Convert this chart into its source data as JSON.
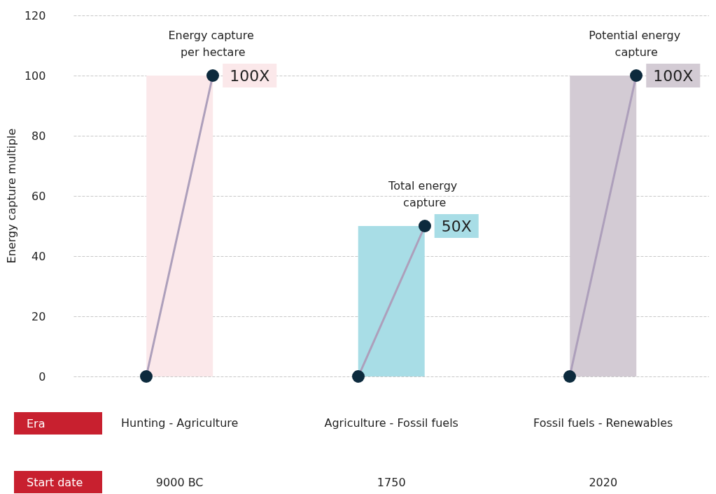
{
  "chart_data": {
    "type": "bar",
    "ylabel": "Energy capture multiple",
    "categories": [
      "Hunting - Agriculture",
      "Agriculture - Fossil fuels",
      "Fossil fuels - Renewables"
    ],
    "series": [
      {
        "type": "bar",
        "colors": [
          "#fbe8ea",
          "#a8dde6",
          "#d3cbd4"
        ],
        "values": [
          100,
          50,
          100
        ]
      }
    ],
    "annotations": [
      "100X",
      "50X",
      "100X",
      "Era",
      "Start date",
      "9000 BC",
      "1750",
      "2020",
      {
        "text": "Energy capture per hectare",
        "x": "Hunting - Agriculture",
        "y": 100
      },
      {
        "text": "Total energy capture",
        "x": "Agriculture - Fossil fuels",
        "y": 50
      },
      {
        "text": "Potential energy capture",
        "x": "Fossil fuels - Renewables",
        "y": 100
      }
    ],
    "ylim": [
      0,
      120
    ],
    "yticks": [
      0,
      20,
      40,
      60,
      80,
      100,
      120
    ],
    "grid": "y"
  }
}
